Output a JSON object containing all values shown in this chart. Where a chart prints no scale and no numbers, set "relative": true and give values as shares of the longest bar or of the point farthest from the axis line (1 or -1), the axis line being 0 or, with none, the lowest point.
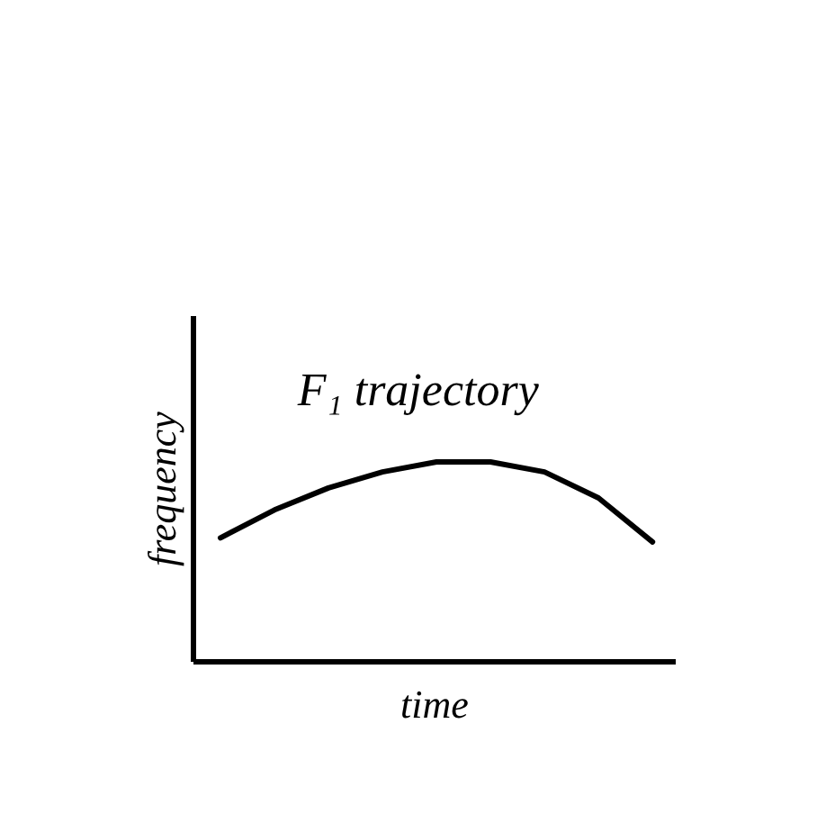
{
  "chart_data": {
    "type": "line",
    "relative": true,
    "xlabel": "time",
    "ylabel": "frequency",
    "annotations": [
      "F₁ trajectory"
    ],
    "categories": [
      null,
      null,
      null,
      null,
      null,
      null,
      null,
      null,
      null
    ],
    "series": [
      {
        "color": "#000000",
        "values": [
          0.62,
          0.76,
          0.87,
          0.95,
          1,
          1,
          0.95,
          0.82,
          0.6
        ]
      }
    ],
    "grid": false,
    "marker": "none",
    "line_style": "solid"
  }
}
